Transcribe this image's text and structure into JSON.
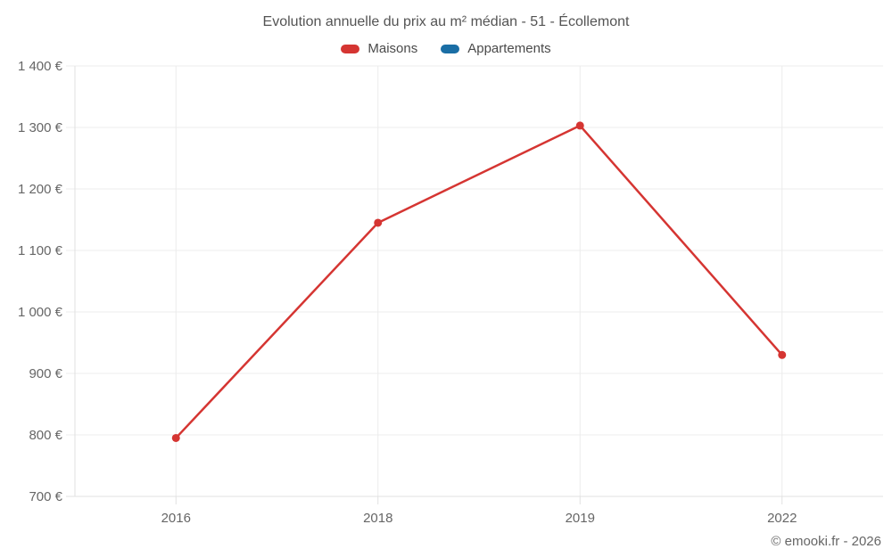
{
  "title": "Evolution annuelle du prix au m² médian - 51 - Écollemont",
  "footer": {
    "credit": "© emooki.fr - 2026"
  },
  "colors": {
    "maisons": "#d53532",
    "appartements": "#1a6ea5",
    "grid": "#ececec",
    "axis": "#e0e0e0",
    "tick_text": "#666666",
    "title_text": "#545454"
  },
  "chart_data": {
    "type": "line",
    "title": "Evolution annuelle du prix au m² médian - 51 - Écollemont",
    "categories": [
      "2016",
      "2018",
      "2019",
      "2022"
    ],
    "series": [
      {
        "name": "Maisons",
        "color": "#d53532",
        "values": [
          795,
          1145,
          1303,
          930
        ]
      },
      {
        "name": "Appartements",
        "color": "#1a6ea5",
        "values": []
      }
    ],
    "ylim": [
      700,
      1400
    ],
    "ytick_step": 100,
    "ytick_labels": [
      "700 €",
      "800 €",
      "900 €",
      "1 000 €",
      "1 100 €",
      "1 200 €",
      "1 300 €",
      "1 400 €"
    ],
    "xlabel": "",
    "ylabel": "",
    "grid": true,
    "legend_position": "top"
  }
}
